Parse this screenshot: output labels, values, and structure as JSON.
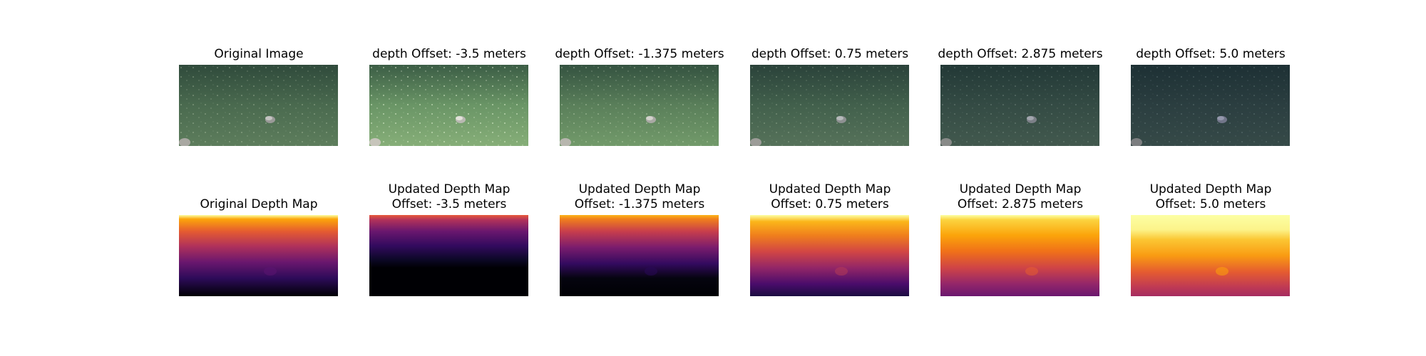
{
  "titles": {
    "row1": [
      "Original Image",
      "depth Offset: -3.5 meters",
      "depth Offset: -1.375 meters",
      "depth Offset: 0.75 meters",
      "depth Offset: 2.875 meters",
      "depth Offset: 5.0 meters"
    ],
    "row2": [
      "Original Depth Map",
      "Updated Depth Map\nOffset: -3.5 meters",
      "Updated Depth Map\nOffset: -1.375 meters",
      "Updated Depth Map\nOffset: 0.75 meters",
      "Updated Depth Map\nOffset: 2.875 meters",
      "Updated Depth Map\nOffset: 5.0 meters"
    ]
  },
  "colors": {
    "background": "#ffffff",
    "inferno_black": "#000004",
    "inferno_purple": "#420a68",
    "inferno_magenta": "#932667",
    "inferno_red": "#dd513a",
    "inferno_orange": "#fca50a",
    "inferno_yellow": "#fcffa4"
  }
}
